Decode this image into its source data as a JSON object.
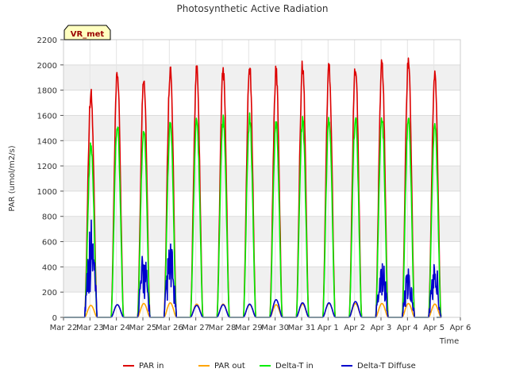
{
  "chart_data": {
    "type": "line",
    "title": "Photosynthetic Active Radiation",
    "xlabel": "Time",
    "ylabel": "PAR (umol/m2/s)",
    "site_badge": "VR_met",
    "ylim": [
      0,
      2200
    ],
    "yticks": [
      0,
      200,
      400,
      600,
      800,
      1000,
      1200,
      1400,
      1600,
      1800,
      2000,
      2200
    ],
    "xlim": [
      0,
      15
    ],
    "xtick_labels": [
      "Mar 22",
      "Mar 23",
      "Mar 24",
      "Mar 25",
      "Mar 26",
      "Mar 27",
      "Mar 28",
      "Mar 29",
      "Mar 30",
      "Mar 31",
      "Apr 1",
      "Apr 2",
      "Apr 3",
      "Apr 4",
      "Apr 5",
      "Apr 6"
    ],
    "day_labels": [
      "Mar 23",
      "Mar 24",
      "Mar 25",
      "Mar 26",
      "Mar 27",
      "Mar 28",
      "Mar 29",
      "Mar 30",
      "Mar 31",
      "Apr 1",
      "Apr 2",
      "Apr 3",
      "Apr 4",
      "Apr 5"
    ],
    "series": [
      {
        "name": "PAR in",
        "color": "#dd0000",
        "daily_peak": [
          1830,
          1990,
          1970,
          2030,
          2020,
          2010,
          2040,
          2010,
          2060,
          2060,
          2060,
          2080,
          2100,
          1980
        ]
      },
      {
        "name": "PAR out",
        "color": "#ffa500",
        "daily_peak": [
          95,
          100,
          110,
          115,
          105,
          105,
          100,
          100,
          105,
          110,
          110,
          110,
          110,
          105
        ]
      },
      {
        "name": "Delta-T in",
        "color": "#00ee00",
        "daily_peak": [
          1400,
          1560,
          1550,
          1580,
          1600,
          1610,
          1620,
          1580,
          1620,
          1630,
          1640,
          1630,
          1620,
          1570
        ]
      },
      {
        "name": "Delta-T Diffuse",
        "color": "#0000cc",
        "daily_peak": [
          820,
          100,
          540,
          610,
          95,
          100,
          105,
          140,
          115,
          115,
          125,
          530,
          390,
          470
        ]
      }
    ]
  }
}
